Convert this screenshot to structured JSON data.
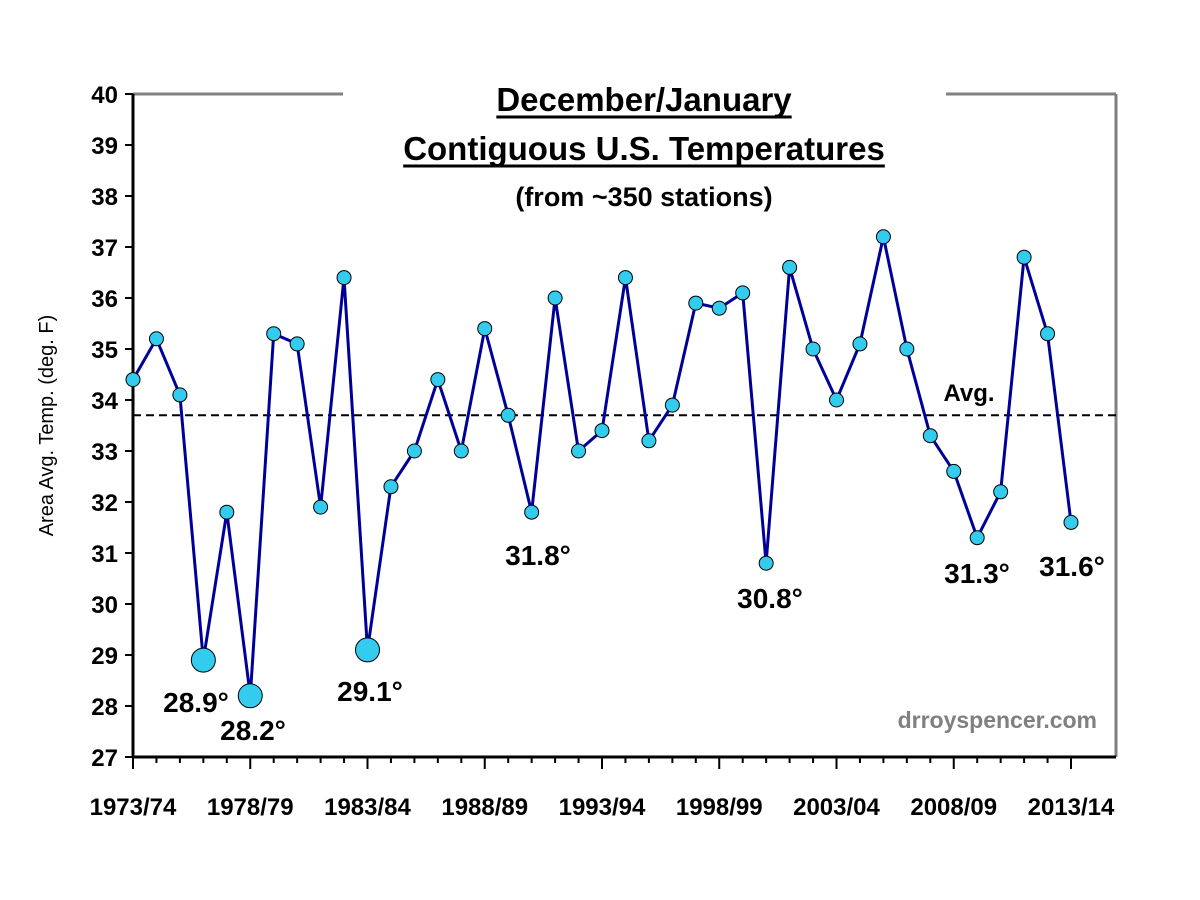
{
  "chart_data": {
    "type": "line",
    "title": "December/January",
    "subtitle": "Contiguous U.S. Temperatures",
    "subtitle2": "(from ~350 stations)",
    "xlabel": "",
    "ylabel": "Area Avg. Temp. (deg. F)",
    "ylim": [
      27,
      40
    ],
    "y_ticks": [
      "27",
      "28",
      "29",
      "30",
      "31",
      "32",
      "33",
      "34",
      "35",
      "36",
      "37",
      "38",
      "39",
      "40"
    ],
    "x_tick_labels": [
      {
        "index": 0,
        "label": "1973/74"
      },
      {
        "index": 5,
        "label": "1978/79"
      },
      {
        "index": 10,
        "label": "1983/84"
      },
      {
        "index": 15,
        "label": "1988/89"
      },
      {
        "index": 20,
        "label": "1993/94"
      },
      {
        "index": 25,
        "label": "1998/99"
      },
      {
        "index": 30,
        "label": "2003/04"
      },
      {
        "index": 35,
        "label": "2008/09"
      },
      {
        "index": 40,
        "label": "2013/14"
      }
    ],
    "first_season": "1973/74",
    "last_season": "2013/14",
    "values": [
      34.4,
      35.2,
      34.1,
      28.9,
      31.8,
      28.2,
      35.3,
      35.1,
      31.9,
      36.4,
      29.1,
      32.3,
      33.0,
      34.4,
      33.0,
      35.4,
      33.7,
      31.8,
      36.0,
      33.0,
      33.4,
      36.4,
      33.2,
      33.9,
      35.9,
      35.8,
      36.1,
      30.8,
      36.6,
      35.0,
      34.0,
      35.1,
      37.2,
      35.0,
      33.3,
      32.6,
      31.3,
      32.2,
      36.8,
      35.3,
      31.6
    ],
    "highlight_indices": [
      3,
      5,
      10
    ],
    "average": 33.7,
    "average_label": "Avg.",
    "annotations": [
      {
        "index": 3,
        "label": "28.9°"
      },
      {
        "index": 5,
        "label": "28.2°"
      },
      {
        "index": 10,
        "label": "29.1°"
      },
      {
        "index": 17,
        "label": "31.8°"
      },
      {
        "index": 27,
        "label": "30.8°"
      },
      {
        "index": 36,
        "label": "31.3°"
      },
      {
        "index": 40,
        "label": "31.6°"
      }
    ],
    "watermark": "drroyspencer.com",
    "grid": false,
    "legend": "none",
    "colors": {
      "line": "#000099",
      "marker_fill": "#33ccee",
      "marker_stroke": "#000000",
      "average_line": "#000000",
      "frame": "#808080",
      "watermark": "#808080"
    }
  }
}
